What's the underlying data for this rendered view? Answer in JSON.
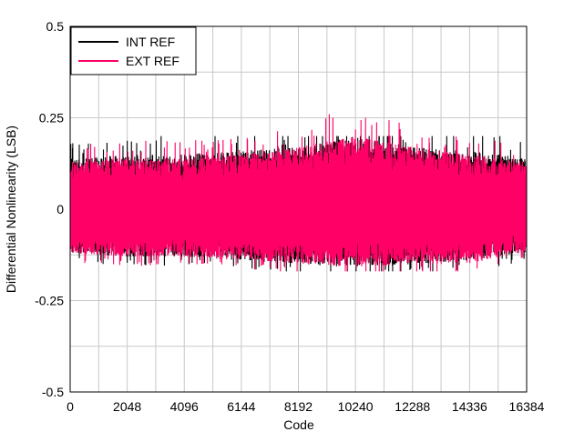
{
  "chart_data": {
    "type": "line",
    "title": "",
    "xlabel": "Code",
    "ylabel": "Differential Nonlinearity (LSB)",
    "xlim": [
      0,
      16384
    ],
    "ylim": [
      -0.5,
      0.5
    ],
    "x_ticks": [
      0,
      2048,
      4096,
      6144,
      8192,
      10240,
      12288,
      14336,
      16384
    ],
    "x_tick_labels": [
      "0",
      "2048",
      "4096",
      "6144",
      "8192",
      "10240",
      "12288",
      "14336",
      "16384"
    ],
    "y_ticks": [
      0.5,
      0.25,
      0,
      -0.25,
      -0.5
    ],
    "y_tick_labels": [
      "0.5",
      "0.25",
      "0",
      "-0.25",
      "-0.5"
    ],
    "grid": true,
    "legend_position": "top-left",
    "series": [
      {
        "name": "INT REF",
        "color": "#000000",
        "envelope_codes": [
          0,
          2048,
          4096,
          6144,
          8192,
          10240,
          12288,
          14336,
          16384
        ],
        "envelope_upper": [
          0.14,
          0.15,
          0.15,
          0.16,
          0.17,
          0.2,
          0.17,
          0.16,
          0.14
        ],
        "envelope_lower": [
          -0.12,
          -0.13,
          -0.13,
          -0.14,
          -0.15,
          -0.16,
          -0.15,
          -0.14,
          -0.12
        ],
        "peak_max": 0.2,
        "peak_min": -0.17
      },
      {
        "name": "EXT REF",
        "color": "#ff0066",
        "envelope_codes": [
          0,
          2048,
          4096,
          6144,
          8192,
          10240,
          12288,
          14336,
          16384
        ],
        "envelope_upper": [
          0.13,
          0.14,
          0.14,
          0.15,
          0.17,
          0.2,
          0.17,
          0.15,
          0.13
        ],
        "envelope_lower": [
          -0.12,
          -0.13,
          -0.13,
          -0.14,
          -0.15,
          -0.16,
          -0.15,
          -0.15,
          -0.12
        ],
        "peak_max": 0.26,
        "peak_min": -0.17
      }
    ]
  }
}
